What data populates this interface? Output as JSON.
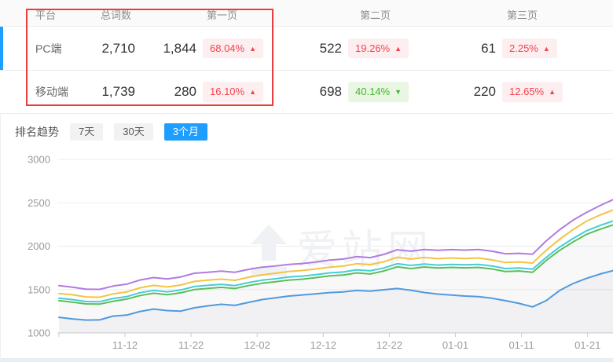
{
  "table": {
    "headers": {
      "platform": "平台",
      "total": "总词数",
      "page1": "第一页",
      "page2": "第二页",
      "page3": "第三页"
    },
    "rows": [
      {
        "platform": "PC端",
        "total": "2,710",
        "page1_count": "1,844",
        "page1_pct": "68.04%",
        "page1_arrow": "▲",
        "page2_count": "522",
        "page2_pct": "19.26%",
        "page2_arrow": "▲",
        "page3_count": "61",
        "page3_pct": "2.25%",
        "page3_arrow": "▲",
        "selected": true
      },
      {
        "platform": "移动端",
        "total": "1,739",
        "page1_count": "280",
        "page1_pct": "16.10%",
        "page1_arrow": "▲",
        "page2_count": "698",
        "page2_pct": "40.14%",
        "page2_arrow": "▼",
        "page3_count": "220",
        "page3_pct": "12.65%",
        "page3_arrow": "▲",
        "selected": false
      }
    ]
  },
  "trend": {
    "label": "排名趋势",
    "tabs": [
      {
        "label": "7天",
        "active": false
      },
      {
        "label": "30天",
        "active": false
      },
      {
        "label": "3个月",
        "active": true
      }
    ]
  },
  "colors": {
    "accent_blue": "#1e9fff",
    "badge_red_text": "#f2434f",
    "badge_red_bg": "#fdeef0",
    "badge_green_text": "#42b52f",
    "badge_green_bg": "#eaf6e4",
    "annotation_red": "#ea3d3d"
  },
  "chart_data": {
    "type": "line",
    "title": "",
    "xlabel": "",
    "ylabel": "",
    "ylim": [
      1000,
      3000
    ],
    "y_ticks": [
      1000,
      1500,
      2000,
      2500,
      3000
    ],
    "x_tick_labels": [
      "11-12",
      "11-22",
      "12-02",
      "12-12",
      "12-22",
      "01-01",
      "01-11",
      "01-21"
    ],
    "x_range_days": [
      "11-02",
      "01-25"
    ],
    "grid": true,
    "legend": "none",
    "watermark": "爱站网",
    "series": [
      {
        "name": "purple",
        "color": "#b07ce0",
        "fill": false,
        "values": [
          1545,
          1528,
          1505,
          1502,
          1540,
          1562,
          1610,
          1638,
          1622,
          1645,
          1688,
          1700,
          1712,
          1700,
          1732,
          1758,
          1772,
          1790,
          1800,
          1818,
          1840,
          1852,
          1880,
          1868,
          1905,
          1958,
          1942,
          1962,
          1952,
          1960,
          1955,
          1962,
          1942,
          1912,
          1918,
          1908,
          2060,
          2190,
          2300,
          2390,
          2470,
          2540
        ]
      },
      {
        "name": "yellow",
        "color": "#f6c343",
        "fill": false,
        "values": [
          1455,
          1440,
          1415,
          1412,
          1450,
          1472,
          1520,
          1548,
          1530,
          1552,
          1594,
          1608,
          1620,
          1606,
          1642,
          1670,
          1688,
          1708,
          1720,
          1738,
          1758,
          1770,
          1798,
          1786,
          1820,
          1872,
          1852,
          1870,
          1856,
          1864,
          1858,
          1864,
          1842,
          1812,
          1818,
          1805,
          1952,
          2080,
          2192,
          2290,
          2360,
          2420
        ]
      },
      {
        "name": "cyan",
        "color": "#45cdd6",
        "fill": false,
        "values": [
          1400,
          1385,
          1362,
          1360,
          1396,
          1418,
          1464,
          1490,
          1474,
          1495,
          1535,
          1548,
          1560,
          1546,
          1580,
          1608,
          1624,
          1644,
          1655,
          1672,
          1692,
          1702,
          1728,
          1716,
          1748,
          1798,
          1778,
          1795,
          1782,
          1790,
          1785,
          1790,
          1772,
          1742,
          1748,
          1735,
          1870,
          1990,
          2090,
          2178,
          2240,
          2292
        ]
      },
      {
        "name": "green",
        "color": "#5cbe57",
        "fill": true,
        "values": [
          1372,
          1356,
          1335,
          1332,
          1366,
          1390,
          1432,
          1458,
          1442,
          1462,
          1500,
          1514,
          1526,
          1512,
          1546,
          1572,
          1590,
          1610,
          1620,
          1638,
          1658,
          1668,
          1692,
          1680,
          1714,
          1762,
          1742,
          1760,
          1748,
          1756,
          1750,
          1756,
          1738,
          1708,
          1714,
          1700,
          1835,
          1952,
          2050,
          2138,
          2196,
          2248
        ]
      },
      {
        "name": "blue",
        "color": "#509add",
        "fill": true,
        "values": [
          1180,
          1162,
          1148,
          1150,
          1195,
          1205,
          1248,
          1275,
          1258,
          1252,
          1290,
          1312,
          1330,
          1318,
          1352,
          1385,
          1405,
          1425,
          1438,
          1452,
          1465,
          1472,
          1490,
          1482,
          1498,
          1512,
          1492,
          1466,
          1448,
          1436,
          1425,
          1418,
          1400,
          1372,
          1340,
          1300,
          1372,
          1490,
          1570,
          1630,
          1680,
          1720
        ]
      }
    ]
  }
}
